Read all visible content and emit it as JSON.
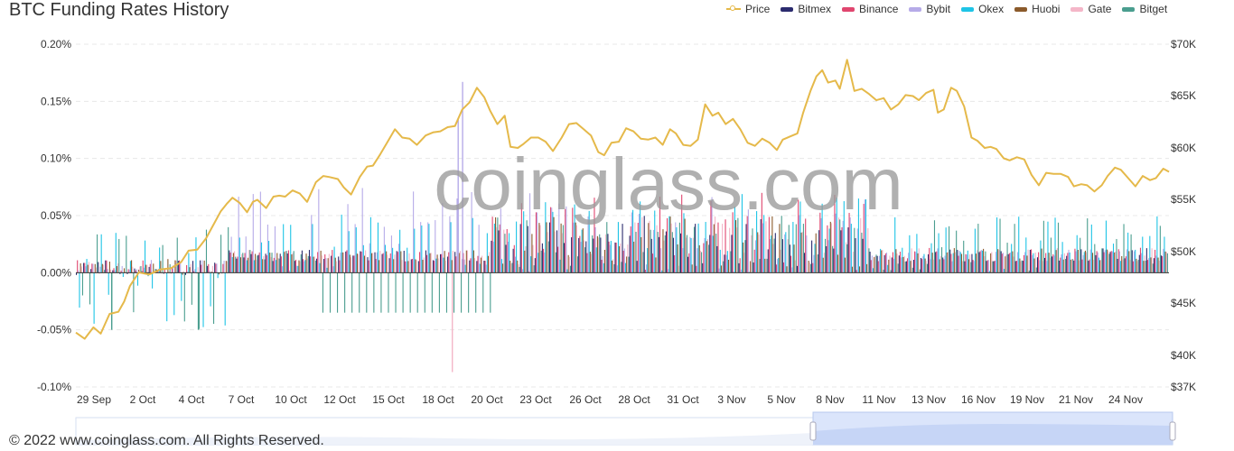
{
  "header": {
    "title": "BTC Funding Rates History"
  },
  "legend": [
    {
      "name": "Price",
      "color": "#e5b94a",
      "kind": "line"
    },
    {
      "name": "Bitmex",
      "color": "#2b2b6e",
      "kind": "bar"
    },
    {
      "name": "Binance",
      "color": "#e0466f",
      "kind": "bar"
    },
    {
      "name": "Bybit",
      "color": "#b6abe8",
      "kind": "bar"
    },
    {
      "name": "Okex",
      "color": "#1ec4e6",
      "kind": "bar"
    },
    {
      "name": "Huobi",
      "color": "#8b5a2b",
      "kind": "bar"
    },
    {
      "name": "Gate",
      "color": "#f4b6c8",
      "kind": "bar"
    },
    {
      "name": "Bitget",
      "color": "#4a9e8f",
      "kind": "bar"
    }
  ],
  "watermark": "coinglass.com",
  "footer": "© 2022 www.coinglass.com. All Rights Reserved.",
  "chart_data": {
    "type": "bar",
    "title": "BTC Funding Rates History",
    "y_left_ticks": [
      "0.20%",
      "0.15%",
      "0.10%",
      "0.05%",
      "0.00%",
      "-0.05%",
      "-0.10%"
    ],
    "y_right_ticks": [
      "$70K",
      "$65K",
      "$60K",
      "$55K",
      "$50K",
      "$45K",
      "$40K",
      "$37K"
    ],
    "y_left_range": [
      -0.1,
      0.2
    ],
    "y_right_range": [
      37000,
      70000
    ],
    "x_ticks": [
      "29 Sep",
      "2 Oct",
      "4 Oct",
      "7 Oct",
      "10 Oct",
      "12 Oct",
      "15 Oct",
      "18 Oct",
      "20 Oct",
      "23 Oct",
      "26 Oct",
      "28 Oct",
      "31 Oct",
      "3 Nov",
      "5 Nov",
      "8 Nov",
      "11 Nov",
      "13 Nov",
      "16 Nov",
      "19 Nov",
      "21 Nov",
      "24 Nov"
    ],
    "x_range_days": [
      0,
      57
    ],
    "grid": true,
    "legend_position": "top-right",
    "price": {
      "name": "Price",
      "axis": "right",
      "points": [
        [
          0,
          42200
        ],
        [
          0.6,
          41600
        ],
        [
          1.2,
          42700
        ],
        [
          1.7,
          42100
        ],
        [
          2.3,
          44000
        ],
        [
          2.9,
          44200
        ],
        [
          3.3,
          45200
        ],
        [
          3.7,
          46700
        ],
        [
          4.3,
          48000
        ],
        [
          5.0,
          47800
        ],
        [
          5.8,
          48300
        ],
        [
          6.5,
          48400
        ],
        [
          7.2,
          49000
        ],
        [
          7.7,
          50100
        ],
        [
          8.3,
          50200
        ],
        [
          8.9,
          51300
        ],
        [
          9.4,
          52600
        ],
        [
          9.9,
          53900
        ],
        [
          10.3,
          54600
        ],
        [
          10.7,
          55200
        ],
        [
          11.2,
          54700
        ],
        [
          11.7,
          53800
        ],
        [
          12.1,
          54800
        ],
        [
          12.4,
          55000
        ],
        [
          13.0,
          54200
        ],
        [
          13.5,
          55300
        ],
        [
          13.9,
          55400
        ],
        [
          14.3,
          55300
        ],
        [
          14.8,
          55900
        ],
        [
          15.3,
          55600
        ],
        [
          15.8,
          54800
        ],
        [
          16.4,
          56700
        ],
        [
          16.9,
          57300
        ],
        [
          17.3,
          57200
        ],
        [
          17.9,
          57000
        ],
        [
          18.3,
          56200
        ],
        [
          18.8,
          55500
        ],
        [
          19.4,
          57200
        ],
        [
          19.9,
          58200
        ],
        [
          20.3,
          58300
        ],
        [
          20.8,
          59400
        ],
        [
          21.3,
          60600
        ],
        [
          21.8,
          61800
        ],
        [
          22.3,
          61000
        ],
        [
          22.8,
          60900
        ],
        [
          23.3,
          60300
        ],
        [
          23.9,
          61200
        ],
        [
          24.4,
          61500
        ],
        [
          24.9,
          61600
        ],
        [
          25.4,
          62000
        ],
        [
          25.9,
          62100
        ],
        [
          26.4,
          63700
        ],
        [
          26.9,
          64400
        ],
        [
          27.4,
          65800
        ],
        [
          27.9,
          64900
        ],
        [
          28.3,
          63600
        ],
        [
          28.8,
          62300
        ],
        [
          29.3,
          63100
        ],
        [
          29.7,
          60100
        ],
        [
          30.2,
          60000
        ],
        [
          30.6,
          60400
        ],
        [
          31.1,
          61000
        ],
        [
          31.6,
          61000
        ],
        [
          32.1,
          60600
        ],
        [
          32.6,
          59700
        ],
        [
          33.2,
          61000
        ],
        [
          33.7,
          62300
        ],
        [
          34.2,
          62400
        ],
        [
          34.7,
          61800
        ],
        [
          35.2,
          61200
        ],
        [
          35.7,
          59600
        ],
        [
          36.1,
          59300
        ],
        [
          36.6,
          60500
        ],
        [
          37.1,
          60600
        ],
        [
          37.6,
          61900
        ],
        [
          38.1,
          61600
        ],
        [
          38.6,
          60900
        ],
        [
          39.1,
          60800
        ],
        [
          39.6,
          61000
        ],
        [
          40.1,
          60300
        ],
        [
          40.6,
          61800
        ],
        [
          41.0,
          61400
        ],
        [
          41.5,
          60300
        ],
        [
          42.0,
          60200
        ],
        [
          42.5,
          60800
        ],
        [
          43.0,
          64200
        ],
        [
          43.5,
          63100
        ],
        [
          43.9,
          63400
        ],
        [
          44.4,
          62300
        ],
        [
          44.9,
          62800
        ],
        [
          45.4,
          61800
        ],
        [
          45.9,
          60500
        ],
        [
          46.4,
          60200
        ],
        [
          46.9,
          60900
        ],
        [
          47.4,
          60500
        ],
        [
          47.9,
          59800
        ],
        [
          48.3,
          60800
        ],
        [
          48.8,
          61100
        ],
        [
          49.3,
          61400
        ],
        [
          49.7,
          63400
        ],
        [
          50.2,
          65500
        ],
        [
          50.6,
          66900
        ],
        [
          51.0,
          67500
        ],
        [
          51.4,
          66300
        ],
        [
          51.9,
          66500
        ],
        [
          52.2,
          65700
        ],
        [
          52.7,
          68500
        ],
        [
          53.2,
          65500
        ],
        [
          53.7,
          65700
        ],
        [
          54.2,
          65200
        ],
        [
          54.7,
          64600
        ],
        [
          55.2,
          64800
        ],
        [
          55.7,
          63700
        ],
        [
          56.2,
          64200
        ],
        [
          56.7,
          65100
        ],
        [
          57.2,
          65000
        ],
        [
          57.6,
          64600
        ],
        [
          58.1,
          65300
        ],
        [
          58.6,
          65600
        ],
        [
          58.9,
          63400
        ],
        [
          59.3,
          63700
        ],
        [
          59.8,
          65800
        ],
        [
          60.2,
          65500
        ],
        [
          60.7,
          64000
        ],
        [
          61.2,
          61000
        ],
        [
          61.6,
          60700
        ],
        [
          62.1,
          60000
        ],
        [
          62.5,
          60100
        ],
        [
          62.9,
          59900
        ],
        [
          63.4,
          59000
        ],
        [
          63.8,
          58800
        ],
        [
          64.3,
          59100
        ],
        [
          64.8,
          58900
        ],
        [
          65.3,
          57400
        ],
        [
          65.8,
          56400
        ],
        [
          66.3,
          57600
        ],
        [
          66.8,
          57500
        ],
        [
          67.3,
          57500
        ],
        [
          67.8,
          57200
        ],
        [
          68.2,
          56300
        ],
        [
          68.7,
          56500
        ],
        [
          69.1,
          56400
        ],
        [
          69.6,
          55800
        ],
        [
          70.1,
          56400
        ],
        [
          70.5,
          57300
        ],
        [
          71.0,
          58100
        ],
        [
          71.4,
          57900
        ],
        [
          71.9,
          57100
        ],
        [
          72.4,
          56300
        ],
        [
          72.9,
          57300
        ],
        [
          73.4,
          56900
        ],
        [
          73.8,
          57100
        ],
        [
          74.3,
          58000
        ],
        [
          74.7,
          57700
        ]
      ]
    },
    "funding_rates": {
      "unit": "%",
      "axis": "left",
      "series": [
        {
          "name": "Bitmex",
          "typical": 0.01
        },
        {
          "name": "Binance",
          "typical": 0.01
        },
        {
          "name": "Bybit",
          "typical": 0.01
        },
        {
          "name": "Okex",
          "typical": 0.005
        },
        {
          "name": "Huobi",
          "typical": 0.01
        },
        {
          "name": "Gate",
          "typical": 0.01
        },
        {
          "name": "Bitget",
          "typical": 0.01
        }
      ],
      "notable": [
        {
          "series": "Bybit",
          "x_day": 26.3,
          "value": 0.167
        },
        {
          "series": "Bybit",
          "x_day": 26.0,
          "value": 0.135
        },
        {
          "series": "Gate",
          "x_day": 25.6,
          "value": -0.087
        },
        {
          "series": "Bitget",
          "x_day": 2.4,
          "value": -0.05
        },
        {
          "series": "Bitget",
          "x_day": 8.3,
          "value": -0.05
        }
      ]
    }
  }
}
